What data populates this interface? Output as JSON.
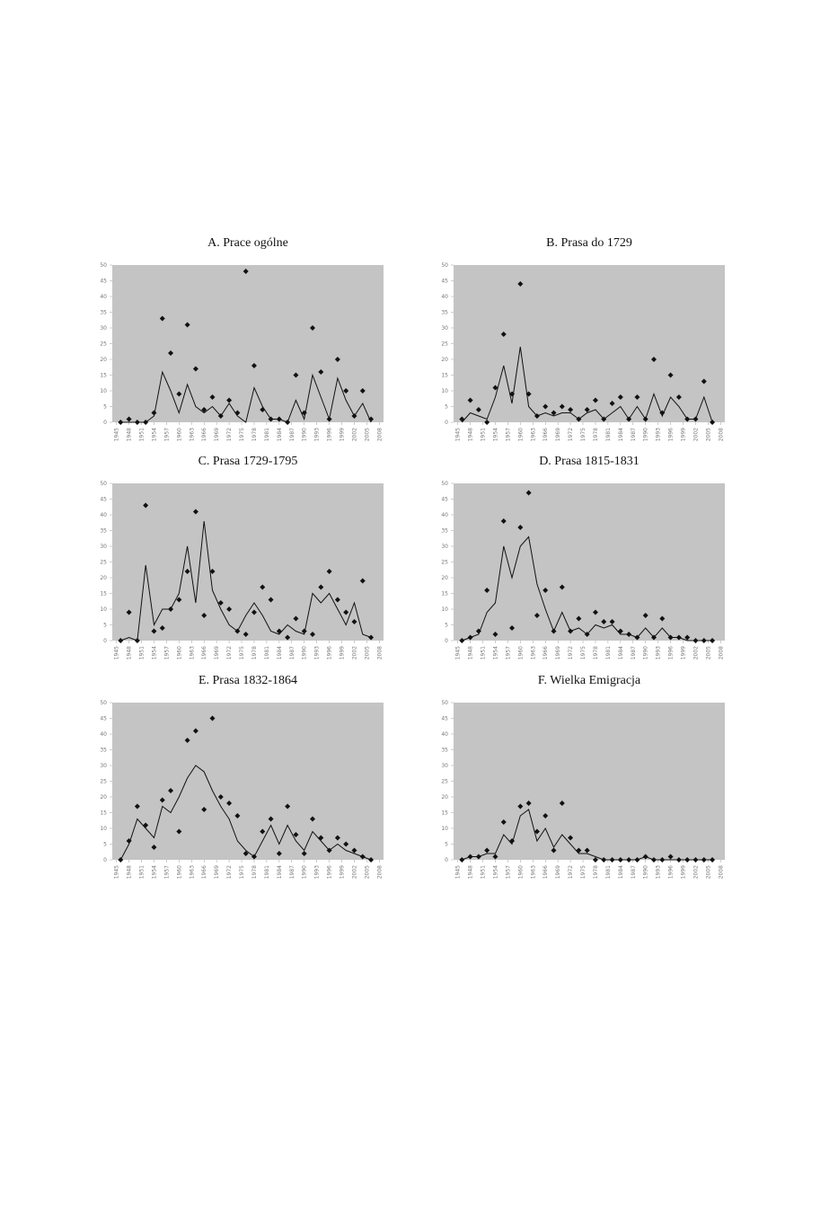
{
  "chart_data": [
    {
      "type": "line",
      "title": "A. Prace ogólne",
      "x": [
        1946,
        1948,
        1950,
        1952,
        1954,
        1956,
        1958,
        1960,
        1962,
        1964,
        1966,
        1968,
        1970,
        1972,
        1974,
        1976,
        1978,
        1980,
        1982,
        1984,
        1986,
        1988,
        1990,
        1992,
        1994,
        1996,
        1998,
        2000,
        2002,
        2004,
        2006
      ],
      "series": [
        {
          "type": "scatter",
          "color": "#111111",
          "values": [
            0,
            1,
            0,
            0,
            3,
            33,
            22,
            9,
            31,
            17,
            4,
            8,
            2,
            7,
            3,
            48,
            18,
            4,
            1,
            1,
            0,
            15,
            3,
            30,
            16,
            1,
            20,
            10,
            2,
            10,
            1
          ]
        },
        {
          "type": "line",
          "color": "#111111",
          "values": [
            0,
            0,
            0,
            0,
            2,
            16,
            10,
            3,
            12,
            5,
            3,
            5,
            2,
            6,
            2,
            0,
            11,
            5,
            1,
            1,
            0,
            7,
            1,
            15,
            8,
            1,
            14,
            7,
            2,
            6,
            0
          ]
        }
      ],
      "xlim": [
        1944,
        2009
      ],
      "xticks": [
        1945,
        1948,
        1951,
        1954,
        1957,
        1960,
        1963,
        1966,
        1969,
        1972,
        1975,
        1978,
        1981,
        1984,
        1987,
        1990,
        1993,
        1996,
        1999,
        2002,
        2005,
        2008
      ],
      "ylim": [
        0,
        50
      ],
      "yticks": [
        0,
        5,
        10,
        15,
        20,
        25,
        30,
        35,
        40,
        45,
        50
      ],
      "background": "#c4c4c4"
    },
    {
      "type": "line",
      "title": "B. Prasa do 1729",
      "x": [
        1946,
        1948,
        1950,
        1952,
        1954,
        1956,
        1958,
        1960,
        1962,
        1964,
        1966,
        1968,
        1970,
        1972,
        1974,
        1976,
        1978,
        1980,
        1982,
        1984,
        1986,
        1988,
        1990,
        1992,
        1994,
        1996,
        1998,
        2000,
        2002,
        2004,
        2006
      ],
      "series": [
        {
          "type": "scatter",
          "color": "#111111",
          "values": [
            1,
            7,
            4,
            0,
            11,
            28,
            9,
            44,
            9,
            2,
            5,
            3,
            5,
            4,
            1,
            4,
            7,
            1,
            6,
            8,
            1,
            8,
            1,
            20,
            3,
            15,
            8,
            1,
            1,
            13,
            0
          ]
        },
        {
          "type": "line",
          "color": "#111111",
          "values": [
            0,
            3,
            2,
            1,
            8,
            18,
            6,
            24,
            5,
            2,
            3,
            2,
            3,
            3,
            1,
            3,
            4,
            1,
            3,
            5,
            1,
            5,
            1,
            9,
            2,
            8,
            5,
            1,
            1,
            8,
            0
          ]
        }
      ],
      "xlim": [
        1944,
        2009
      ],
      "xticks": [
        1945,
        1948,
        1951,
        1954,
        1957,
        1960,
        1963,
        1966,
        1969,
        1972,
        1975,
        1978,
        1981,
        1984,
        1987,
        1990,
        1993,
        1996,
        1999,
        2002,
        2005,
        2008
      ],
      "ylim": [
        0,
        50
      ],
      "yticks": [
        0,
        5,
        10,
        15,
        20,
        25,
        30,
        35,
        40,
        45,
        50
      ],
      "background": "#c4c4c4"
    },
    {
      "type": "line",
      "title": "C. Prasa 1729-1795",
      "x": [
        1946,
        1948,
        1950,
        1952,
        1954,
        1956,
        1958,
        1960,
        1962,
        1964,
        1966,
        1968,
        1970,
        1972,
        1974,
        1976,
        1978,
        1980,
        1982,
        1984,
        1986,
        1988,
        1990,
        1992,
        1994,
        1996,
        1998,
        2000,
        2002,
        2004,
        2006
      ],
      "series": [
        {
          "type": "scatter",
          "color": "#111111",
          "values": [
            0,
            9,
            0,
            43,
            3,
            4,
            10,
            13,
            22,
            41,
            8,
            22,
            12,
            10,
            3,
            2,
            9,
            17,
            13,
            3,
            1,
            7,
            3,
            2,
            17,
            22,
            13,
            9,
            6,
            19,
            1
          ]
        },
        {
          "type": "line",
          "color": "#111111",
          "values": [
            0,
            1,
            0,
            24,
            5,
            10,
            10,
            15,
            30,
            12,
            38,
            16,
            10,
            5,
            3,
            8,
            12,
            8,
            3,
            2,
            5,
            3,
            2,
            15,
            12,
            15,
            10,
            5,
            12,
            2,
            1
          ]
        }
      ],
      "xlim": [
        1944,
        2009
      ],
      "xticks": [
        1945,
        1948,
        1951,
        1954,
        1957,
        1960,
        1963,
        1966,
        1969,
        1972,
        1975,
        1978,
        1981,
        1984,
        1987,
        1990,
        1993,
        1996,
        1999,
        2002,
        2005,
        2008
      ],
      "ylim": [
        0,
        50
      ],
      "yticks": [
        0,
        5,
        10,
        15,
        20,
        25,
        30,
        35,
        40,
        45,
        50
      ],
      "background": "#c4c4c4"
    },
    {
      "type": "line",
      "title": "D. Prasa 1815-1831",
      "x": [
        1946,
        1948,
        1950,
        1952,
        1954,
        1956,
        1958,
        1960,
        1962,
        1964,
        1966,
        1968,
        1970,
        1972,
        1974,
        1976,
        1978,
        1980,
        1982,
        1984,
        1986,
        1988,
        1990,
        1992,
        1994,
        1996,
        1998,
        2000,
        2002,
        2004,
        2006
      ],
      "series": [
        {
          "type": "scatter",
          "color": "#111111",
          "values": [
            0,
            1,
            3,
            16,
            2,
            38,
            4,
            36,
            47,
            8,
            16,
            3,
            17,
            3,
            7,
            2,
            9,
            6,
            6,
            3,
            2,
            1,
            8,
            1,
            7,
            1,
            1,
            1,
            0,
            0,
            0
          ]
        },
        {
          "type": "line",
          "color": "#111111",
          "values": [
            0,
            1,
            2,
            9,
            12,
            30,
            20,
            30,
            33,
            18,
            10,
            3,
            9,
            3,
            4,
            2,
            5,
            4,
            5,
            2,
            2,
            1,
            4,
            1,
            4,
            1,
            1,
            0,
            0,
            0,
            0
          ]
        }
      ],
      "xlim": [
        1944,
        2009
      ],
      "xticks": [
        1945,
        1948,
        1951,
        1954,
        1957,
        1960,
        1963,
        1966,
        1969,
        1972,
        1975,
        1978,
        1981,
        1984,
        1987,
        1990,
        1993,
        1996,
        1999,
        2002,
        2005,
        2008
      ],
      "ylim": [
        0,
        50
      ],
      "yticks": [
        0,
        5,
        10,
        15,
        20,
        25,
        30,
        35,
        40,
        45,
        50
      ],
      "background": "#c4c4c4"
    },
    {
      "type": "line",
      "title": "E. Prasa 1832-1864",
      "x": [
        1946,
        1948,
        1950,
        1952,
        1954,
        1956,
        1958,
        1960,
        1962,
        1964,
        1966,
        1968,
        1970,
        1972,
        1974,
        1976,
        1978,
        1980,
        1982,
        1984,
        1986,
        1988,
        1990,
        1992,
        1994,
        1996,
        1998,
        2000,
        2002,
        2004,
        2006
      ],
      "series": [
        {
          "type": "scatter",
          "color": "#111111",
          "values": [
            0,
            6,
            17,
            11,
            4,
            19,
            22,
            9,
            38,
            41,
            16,
            45,
            20,
            18,
            14,
            2,
            1,
            9,
            13,
            2,
            17,
            8,
            2,
            13,
            7,
            3,
            7,
            5,
            3,
            1,
            0
          ]
        },
        {
          "type": "line",
          "color": "#111111",
          "values": [
            0,
            5,
            13,
            10,
            7,
            17,
            15,
            20,
            26,
            30,
            28,
            22,
            17,
            13,
            6,
            3,
            1,
            6,
            11,
            5,
            11,
            6,
            3,
            9,
            6,
            3,
            5,
            3,
            2,
            1,
            0
          ]
        }
      ],
      "xlim": [
        1944,
        2009
      ],
      "xticks": [
        1945,
        1948,
        1951,
        1954,
        1957,
        1960,
        1963,
        1966,
        1969,
        1972,
        1975,
        1978,
        1981,
        1984,
        1987,
        1990,
        1993,
        1996,
        1999,
        2002,
        2005,
        2008
      ],
      "ylim": [
        0,
        50
      ],
      "yticks": [
        0,
        5,
        10,
        15,
        20,
        25,
        30,
        35,
        40,
        45,
        50
      ],
      "background": "#c4c4c4"
    },
    {
      "type": "line",
      "title": "F. Wielka Emigracja",
      "x": [
        1946,
        1948,
        1950,
        1952,
        1954,
        1956,
        1958,
        1960,
        1962,
        1964,
        1966,
        1968,
        1970,
        1972,
        1974,
        1976,
        1978,
        1980,
        1982,
        1984,
        1986,
        1988,
        1990,
        1992,
        1994,
        1996,
        1998,
        2000,
        2002,
        2004,
        2006
      ],
      "series": [
        {
          "type": "scatter",
          "color": "#111111",
          "values": [
            0,
            1,
            1,
            3,
            1,
            12,
            6,
            17,
            18,
            9,
            14,
            3,
            18,
            7,
            3,
            3,
            0,
            0,
            0,
            0,
            0,
            0,
            1,
            0,
            0,
            1,
            0,
            0,
            0,
            0,
            0
          ]
        },
        {
          "type": "line",
          "color": "#111111",
          "values": [
            0,
            1,
            1,
            2,
            2,
            8,
            5,
            14,
            16,
            6,
            10,
            4,
            8,
            5,
            2,
            2,
            1,
            0,
            0,
            0,
            0,
            0,
            1,
            0,
            0,
            0,
            0,
            0,
            0,
            0,
            0
          ]
        }
      ],
      "xlim": [
        1944,
        2009
      ],
      "xticks": [
        1945,
        1948,
        1951,
        1954,
        1957,
        1960,
        1963,
        1966,
        1969,
        1972,
        1975,
        1978,
        1981,
        1984,
        1987,
        1990,
        1993,
        1996,
        1999,
        2002,
        2005,
        2008
      ],
      "ylim": [
        0,
        50
      ],
      "yticks": [
        0,
        5,
        10,
        15,
        20,
        25,
        30,
        35,
        40,
        45,
        50
      ],
      "background": "#c4c4c4"
    }
  ]
}
